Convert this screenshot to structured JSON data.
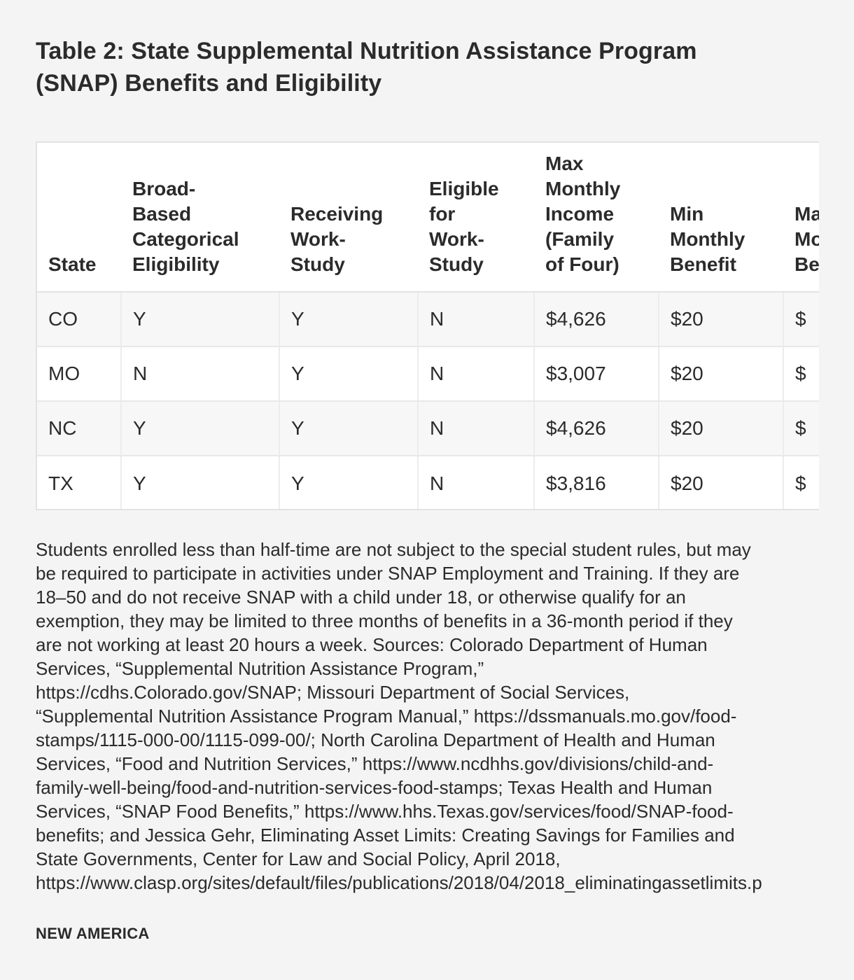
{
  "title": {
    "line1": "Table 2: State Supplemental Nutrition Assistance Program",
    "line2": "(SNAP) Benefits and Eligibility"
  },
  "table": {
    "headers": [
      [
        "State"
      ],
      [
        "Broad-",
        "Based",
        "Categorical",
        "Eligibility"
      ],
      [
        "Receiving",
        "Work-",
        "Study"
      ],
      [
        "Eligible",
        "for",
        "Work-",
        "Study"
      ],
      [
        "Max",
        "Monthly",
        "Income",
        "(Family",
        "of Four)"
      ],
      [
        "Min",
        "Monthly",
        "Benefit"
      ],
      [
        "Max",
        "Monthly",
        "Benefit"
      ]
    ],
    "rows": [
      [
        "CO",
        "Y",
        "Y",
        "N",
        "$4,626",
        "$20",
        "$"
      ],
      [
        "MO",
        "N",
        "Y",
        "N",
        "$3,007",
        "$20",
        "$"
      ],
      [
        "NC",
        "Y",
        "Y",
        "N",
        "$4,626",
        "$20",
        "$"
      ],
      [
        "TX",
        "Y",
        "Y",
        "N",
        "$3,816",
        "$20",
        "$"
      ]
    ]
  },
  "notes": [
    "Students enrolled less than half-time are not subject to the special student rules, but may",
    "be required to participate in activities under SNAP Employment and Training. If they are",
    "18–50 and do not receive SNAP with a child under 18, or otherwise qualify for an",
    "exemption, they may be limited to three months of benefits in a 36-month period if they",
    "are not working at least 20 hours a week. Sources: Colorado Department of Human",
    "Services, “Supplemental Nutrition Assistance Program,”",
    "https://cdhs.Colorado.gov/SNAP; Missouri Department of Social Services,",
    "“Supplemental Nutrition Assistance Program Manual,” https://dssmanuals.mo.gov/food-",
    "stamps/1115-000-00/1115-099-00/; North Carolina Department of Health and Human",
    "Services, “Food and Nutrition Services,” https://www.ncdhhs.gov/divisions/child-and-",
    "family-well-being/food-and-nutrition-services-food-stamps; Texas Health and Human",
    "Services, “SNAP Food Benefits,” https://www.hhs.Texas.gov/services/food/SNAP-food-",
    "benefits; and Jessica Gehr, Eliminating Asset Limits: Creating Savings for Families and",
    "State Governments, Center for Law and Social Policy, April 2018,",
    "https://www.clasp.org/sites/default/files/publications/2018/04/2018_eliminatingassetlimits.p"
  ],
  "brand": "NEW AMERICA"
}
